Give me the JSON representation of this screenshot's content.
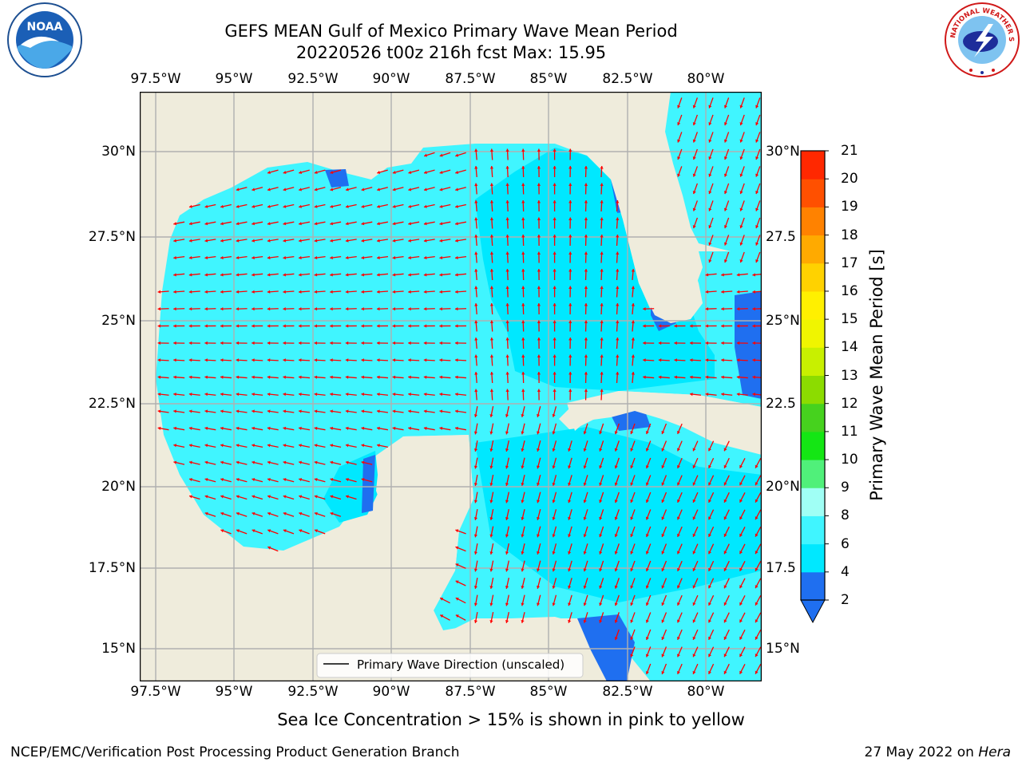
{
  "title": {
    "line1": "GEFS MEAN Gulf of Mexico Primary Wave Mean Period",
    "line2": "20220526 t00z 216h fcst   Max: 15.95"
  },
  "axes": {
    "lon_labels": [
      "97.5°W",
      "95°W",
      "92.5°W",
      "90°W",
      "87.5°W",
      "85°W",
      "82.5°W",
      "80°W"
    ],
    "lat_labels_left": [
      "30°N",
      "27.5°N",
      "25°N",
      "22.5°N",
      "20°N",
      "17.5°N",
      "15°N"
    ],
    "lat_labels_right": [
      "30°N",
      "27.5",
      "25°N",
      "22.5",
      "20°N",
      "17.5",
      "15°N"
    ]
  },
  "legend": {
    "label": "Primary Wave Direction (unscaled)"
  },
  "colorbar": {
    "label": "Primary Wave Mean Period [s]",
    "ticks": [
      "2",
      "4",
      "6",
      "8",
      "9",
      "10",
      "11",
      "12",
      "13",
      "14",
      "15",
      "16",
      "17",
      "18",
      "19",
      "20",
      "21"
    ],
    "colors": [
      "#1f6ff0",
      "#00e8ff",
      "#40f5ff",
      "#a0fff5",
      "#50f07a",
      "#14e614",
      "#46d21e",
      "#8cdc00",
      "#c8f000",
      "#f0f500",
      "#fff000",
      "#ffd200",
      "#ffaa00",
      "#ff8200",
      "#ff5000",
      "#ff2800",
      "#ff0000"
    ]
  },
  "logos": {
    "noaa": {
      "text": "NOAA",
      "icon": "noaa-logo"
    },
    "nws": {
      "text": "NATIONAL WEATHER SERVICE",
      "icon": "nws-logo"
    }
  },
  "notes": {
    "sea_ice": "Sea Ice Concentration > 15% is shown in pink to yellow",
    "footer_left": "NCEP/EMC/Verification Post Processing Product Generation Branch",
    "footer_right_prefix": "27 May 2022 on ",
    "footer_right_machine": "Hera"
  },
  "map_colors": {
    "land": "#efecdc",
    "period_6_8": "#40f5ff",
    "period_4_6": "#00e8ff",
    "period_2_4": "#1f6ff0",
    "period_15_16": "#fff000",
    "arrow": "#ff0000",
    "grid": "#b0b0b0"
  },
  "map_data": {
    "extent": {
      "lon": [
        -98.0,
        -78.2
      ],
      "lat": [
        14.0,
        31.8
      ]
    },
    "gridlines": {
      "lon_step": 2.5,
      "lat_step": 2.5
    }
  }
}
